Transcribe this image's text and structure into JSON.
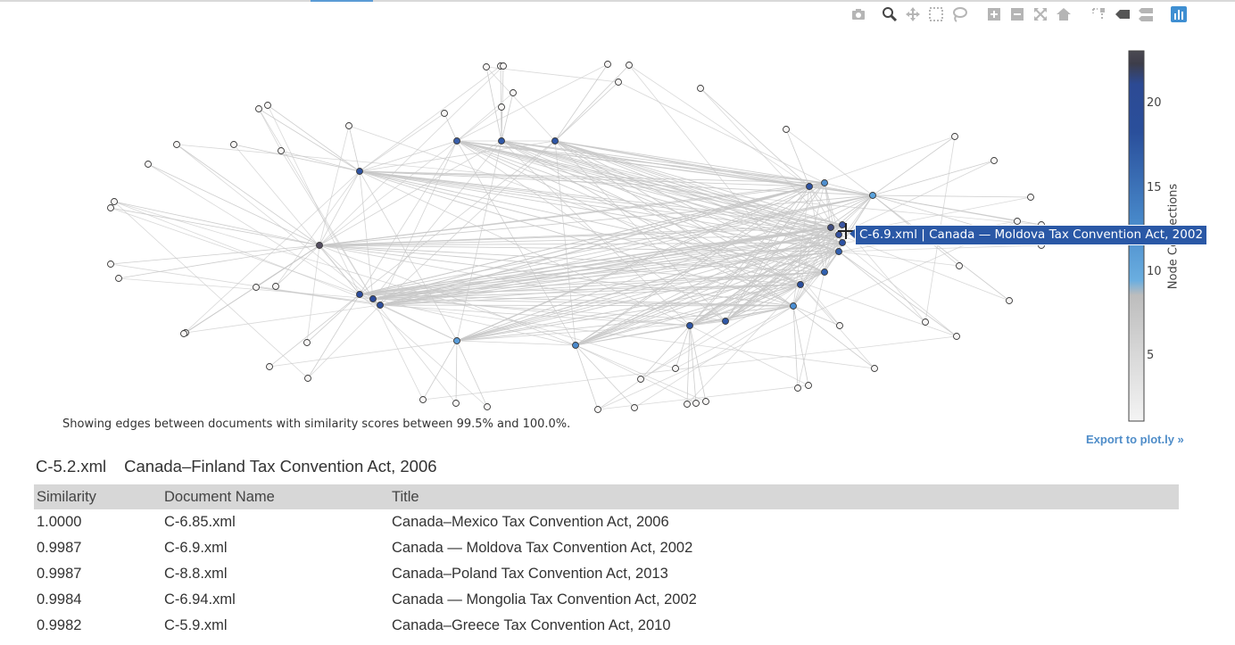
{
  "toolbar": {
    "buttons": [
      {
        "name": "camera-icon"
      },
      {
        "name": "zoom-icon"
      },
      {
        "name": "pan-icon"
      },
      {
        "name": "box-select-icon"
      },
      {
        "name": "lasso-select-icon"
      },
      {
        "name": "zoom-in-icon"
      },
      {
        "name": "zoom-out-icon"
      },
      {
        "name": "autoscale-icon"
      },
      {
        "name": "home-icon"
      },
      {
        "name": "spike-lines-icon"
      },
      {
        "name": "hover-closest-icon"
      },
      {
        "name": "hover-compare-icon"
      },
      {
        "name": "plotly-logo-icon"
      }
    ]
  },
  "graph": {
    "caption": "Showing edges between documents with similarity scores between 99.5% and 100.0%.",
    "hover_label": "C-6.9.xml | Canada — Moldova Tax Convention Act, 2002",
    "export_label": "Export to plot.ly »",
    "colorbar": {
      "title": "Node Connections",
      "ticks": [
        "20",
        "15",
        "10",
        "5"
      ],
      "colors": {
        "low": "#f4f4f4",
        "mid_grey": "#bdbdbd",
        "light_blue": "#6aaee0",
        "dark_blue": "#2a4f9b",
        "top": "#4b4a52"
      }
    },
    "colors": {
      "edge": "#c8c8c8",
      "node_outline": "#3a3a3a"
    }
  },
  "selected": {
    "id": "C-5.2.xml",
    "title": "Canada–Finland Tax Convention Act, 2006"
  },
  "table": {
    "headers": [
      "Similarity",
      "Document Name",
      "Title"
    ],
    "rows": [
      [
        "1.0000",
        "C-6.85.xml",
        "Canada–Mexico Tax Convention Act, 2006"
      ],
      [
        "0.9987",
        "C-6.9.xml",
        "Canada — Moldova Tax Convention Act, 2002"
      ],
      [
        "0.9987",
        "C-8.8.xml",
        "Canada–Poland Tax Convention Act, 2013"
      ],
      [
        "0.9984",
        "C-6.94.xml",
        "Canada — Mongolia Tax Convention Act, 2002"
      ],
      [
        "0.9982",
        "C-5.9.xml",
        "Canada–Greece Tax Convention Act, 2010"
      ]
    ]
  }
}
